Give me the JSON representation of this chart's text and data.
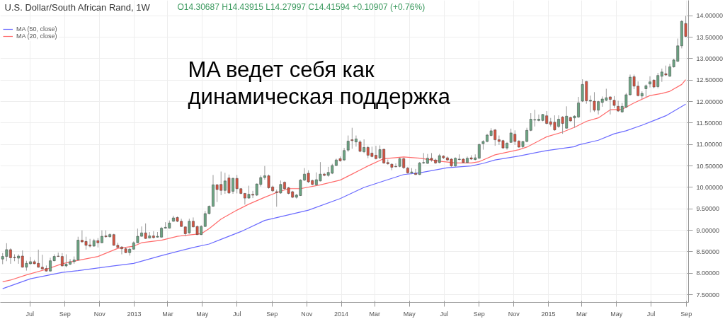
{
  "chart_data": {
    "type": "candlestick",
    "title": "U.S. Dollar/South African Rand, 1W",
    "subtitle": "O14.30687 H14.43915 L14.27997 C14.41594 +0.10907 (+0.76%)",
    "annotations": [
      "MA ведет себя как\nдинамическая поддержка"
    ],
    "colors": [
      "#6ba583",
      "#6ba583",
      "#d75442",
      "#d75442",
      "#6ba583",
      "#d75442",
      "#6ba583",
      "#6ba583",
      "#d75442",
      "#d75442",
      "#d75442",
      "#d75442",
      "#6ba583",
      "#6ba583",
      "#d75442",
      "#d75442",
      "#6ba583",
      "#6ba583",
      "#6ba583",
      "#6ba583",
      "#d75442",
      "#d75442",
      "#d75442",
      "#6ba583",
      "#d75442",
      "#6ba583",
      "#d75442",
      "#6ba583",
      "#d75442",
      "#d75442",
      "#d75442",
      "#d75442",
      "#6ba583",
      "#6ba583",
      "#6ba583",
      "#6ba583",
      "#d75442",
      "#6ba583",
      "#d75442",
      "#6ba583",
      "#6ba583",
      "#6ba583",
      "#6ba583",
      "#6ba583",
      "#d75442",
      "#d75442",
      "#d75442",
      "#6ba583",
      "#d75442",
      "#d75442",
      "#6ba583",
      "#6ba583",
      "#6ba583",
      "#6ba583",
      "#d75442",
      "#d75442",
      "#6ba583",
      "#d75442",
      "#6ba583",
      "#d75442",
      "#d75442",
      "#d75442",
      "#6ba583",
      "#d75442",
      "#6ba583",
      "#6ba583",
      "#6ba583",
      "#d75442",
      "#d75442",
      "#d75442",
      "#6ba583",
      "#d75442",
      "#d75442",
      "#d75442",
      "#6ba583",
      "#6ba583",
      "#6ba583",
      "#d75442",
      "#d75442",
      "#6ba583",
      "#6ba583",
      "#d75442",
      "#6ba583",
      "#6ba583",
      "#6ba583",
      "#d75442",
      "#6ba583",
      "#6ba583",
      "#d75442",
      "#6ba583",
      "#d75442",
      "#6ba583",
      "#d75442",
      "#d75442",
      "#d75442",
      "#6ba583",
      "#d75442",
      "#d75442",
      "#d75442",
      "#d75442",
      "#6ba583",
      "#d75442",
      "#d75442",
      "#6ba583",
      "#d75442",
      "#6ba583",
      "#6ba583",
      "#6ba583",
      "#d75442",
      "#d75442",
      "#6ba583",
      "#d75442",
      "#d75442",
      "#d75442",
      "#6ba583",
      "#6ba583",
      "#d75442",
      "#6ba583",
      "#d75442",
      "#6ba583",
      "#6ba583",
      "#6ba583",
      "#6ba583",
      "#6ba583",
      "#d75442",
      "#d75442",
      "#d75442",
      "#6ba583",
      "#6ba583",
      "#d75442",
      "#d75442",
      "#6ba583",
      "#6ba583",
      "#6ba583",
      "#6ba583",
      "#6ba583",
      "#6ba583",
      "#d75442",
      "#d75442",
      "#d75442",
      "#6ba583",
      "#d75442",
      "#6ba583",
      "#d75442",
      "#6ba583",
      "#6ba583",
      "#6ba583",
      "#d75442",
      "#6ba583",
      "#d75442",
      "#6ba583",
      "#6ba583",
      "#6ba583",
      "#d75442",
      "#d75442",
      "#d75442",
      "#6ba583",
      "#6ba583",
      "#6ba583",
      "#d75442",
      "#d75442",
      "#6ba583",
      "#6ba583",
      "#6ba583",
      "#d75442",
      "#6ba583",
      "#6ba583",
      "#d75442",
      "#6ba583",
      "#6ba583",
      "#6ba583",
      "#6ba583",
      "#d75442"
    ],
    "x": [
      "2012-05-14",
      "2012-05-21",
      "2012-05-28",
      "2012-06-04",
      "2012-06-11",
      "2012-06-18",
      "2012-06-25",
      "2012-07-02",
      "2012-07-09",
      "2012-07-16",
      "2012-07-23",
      "2012-07-30",
      "2012-08-06",
      "2012-08-13",
      "2012-08-20",
      "2012-08-27",
      "2012-09-03",
      "2012-09-10",
      "2012-09-17",
      "2012-09-24",
      "2012-10-01",
      "2012-10-08",
      "2012-10-15",
      "2012-10-22",
      "2012-10-29",
      "2012-11-05",
      "2012-11-12",
      "2012-11-19",
      "2012-11-26",
      "2012-12-03",
      "2012-12-10",
      "2012-12-17",
      "2012-12-24",
      "2012-12-31",
      "2013-01-07",
      "2013-01-14",
      "2013-01-21",
      "2013-01-28",
      "2013-02-04",
      "2013-02-11",
      "2013-02-18",
      "2013-02-25",
      "2013-03-04",
      "2013-03-11",
      "2013-03-18",
      "2013-03-25",
      "2013-04-01",
      "2013-04-08",
      "2013-04-15",
      "2013-04-22",
      "2013-04-29",
      "2013-05-06",
      "2013-05-13",
      "2013-05-20",
      "2013-05-27",
      "2013-06-03",
      "2013-06-10",
      "2013-06-17",
      "2013-06-24",
      "2013-07-01",
      "2013-07-08",
      "2013-07-15",
      "2013-07-22",
      "2013-07-29",
      "2013-08-05",
      "2013-08-12",
      "2013-08-19",
      "2013-08-26",
      "2013-09-02",
      "2013-09-09",
      "2013-09-16",
      "2013-09-23",
      "2013-09-30",
      "2013-10-07",
      "2013-10-14",
      "2013-10-21",
      "2013-10-28",
      "2013-11-04",
      "2013-11-11",
      "2013-11-18",
      "2013-11-25",
      "2013-12-02",
      "2013-12-09",
      "2013-12-16",
      "2013-12-23",
      "2013-12-30",
      "2014-01-06",
      "2014-01-13",
      "2014-01-20",
      "2014-01-27",
      "2014-02-03",
      "2014-02-10",
      "2014-02-17",
      "2014-02-24",
      "2014-03-03",
      "2014-03-10",
      "2014-03-17",
      "2014-03-24",
      "2014-03-31",
      "2014-04-07",
      "2014-04-14",
      "2014-04-21",
      "2014-04-28",
      "2014-05-05",
      "2014-05-12",
      "2014-05-19",
      "2014-05-26",
      "2014-06-02",
      "2014-06-09",
      "2014-06-16",
      "2014-06-23",
      "2014-06-30",
      "2014-07-07",
      "2014-07-14",
      "2014-07-21",
      "2014-07-28",
      "2014-08-04",
      "2014-08-11",
      "2014-08-18",
      "2014-08-25",
      "2014-09-01",
      "2014-09-08",
      "2014-09-15",
      "2014-09-22",
      "2014-09-29",
      "2014-10-06",
      "2014-10-13",
      "2014-10-20",
      "2014-10-27",
      "2014-11-03",
      "2014-11-10",
      "2014-11-17",
      "2014-11-24",
      "2014-12-01",
      "2014-12-08",
      "2014-12-15",
      "2014-12-22",
      "2014-12-29",
      "2015-01-05",
      "2015-01-12",
      "2015-01-19",
      "2015-01-26",
      "2015-02-02",
      "2015-02-09",
      "2015-02-16",
      "2015-02-23",
      "2015-03-02",
      "2015-03-09",
      "2015-03-16",
      "2015-03-23",
      "2015-03-30",
      "2015-04-06",
      "2015-04-13",
      "2015-04-20",
      "2015-04-27",
      "2015-05-04",
      "2015-05-11",
      "2015-05-18",
      "2015-05-25",
      "2015-06-01",
      "2015-06-08",
      "2015-06-15",
      "2015-06-22",
      "2015-06-29",
      "2015-07-06",
      "2015-07-13",
      "2015-07-20",
      "2015-07-27",
      "2015-08-03",
      "2015-08-10",
      "2015-08-17",
      "2015-08-24",
      "2015-08-31"
    ],
    "ohlc": [
      [
        8.33,
        8.47,
        8.21,
        8.39
      ],
      [
        8.39,
        8.7,
        8.28,
        8.55
      ],
      [
        8.55,
        8.58,
        8.22,
        8.36
      ],
      [
        8.37,
        8.44,
        8.28,
        8.36
      ],
      [
        8.35,
        8.44,
        8.22,
        8.4
      ],
      [
        8.4,
        8.53,
        8.13,
        8.14
      ],
      [
        8.14,
        8.29,
        8.06,
        8.23
      ],
      [
        8.22,
        8.38,
        8.2,
        8.27
      ],
      [
        8.27,
        8.31,
        8.21,
        8.22
      ],
      [
        8.23,
        8.55,
        8.13,
        8.14
      ],
      [
        8.14,
        8.43,
        8.09,
        8.1
      ],
      [
        8.11,
        8.18,
        8.04,
        8.05
      ],
      [
        8.05,
        8.36,
        8.04,
        8.29
      ],
      [
        8.29,
        8.44,
        8.28,
        8.39
      ],
      [
        8.4,
        8.48,
        8.38,
        8.39
      ],
      [
        8.39,
        8.47,
        8.16,
        8.17
      ],
      [
        8.17,
        8.44,
        8.14,
        8.21
      ],
      [
        8.21,
        8.33,
        8.19,
        8.27
      ],
      [
        8.27,
        8.39,
        8.22,
        8.31
      ],
      [
        8.31,
        8.85,
        8.29,
        8.77
      ],
      [
        8.77,
        9.0,
        8.71,
        8.73
      ],
      [
        8.74,
        8.85,
        8.55,
        8.65
      ],
      [
        8.66,
        8.8,
        8.6,
        8.63
      ],
      [
        8.63,
        8.8,
        8.62,
        8.76
      ],
      [
        8.76,
        8.82,
        8.6,
        8.71
      ],
      [
        8.71,
        9.0,
        8.7,
        8.86
      ],
      [
        8.87,
        9.0,
        8.83,
        8.85
      ],
      [
        8.85,
        8.93,
        8.83,
        8.9
      ],
      [
        8.9,
        8.92,
        8.64,
        8.65
      ],
      [
        8.65,
        8.71,
        8.59,
        8.6
      ],
      [
        8.61,
        8.63,
        8.44,
        8.57
      ],
      [
        8.57,
        8.6,
        8.47,
        8.48
      ],
      [
        8.48,
        8.59,
        8.41,
        8.56
      ],
      [
        8.56,
        8.74,
        8.55,
        8.71
      ],
      [
        8.71,
        9.04,
        8.7,
        8.86
      ],
      [
        8.86,
        9.09,
        8.85,
        8.94
      ],
      [
        8.94,
        9.16,
        8.8,
        8.81
      ],
      [
        8.82,
        8.96,
        8.81,
        8.87
      ],
      [
        8.87,
        8.98,
        8.81,
        8.83
      ],
      [
        8.84,
        8.96,
        8.83,
        8.86
      ],
      [
        8.84,
        9.08,
        8.83,
        9.05
      ],
      [
        9.05,
        9.19,
        9.04,
        9.07
      ],
      [
        9.05,
        9.23,
        9.04,
        9.17
      ],
      [
        9.21,
        9.34,
        9.2,
        9.29
      ],
      [
        9.3,
        9.32,
        9.19,
        9.21
      ],
      [
        9.21,
        9.27,
        9.08,
        9.09
      ],
      [
        9.08,
        9.09,
        8.86,
        8.92
      ],
      [
        8.94,
        9.27,
        8.92,
        9.21
      ],
      [
        9.21,
        9.3,
        9.07,
        9.08
      ],
      [
        9.09,
        9.11,
        8.89,
        8.9
      ],
      [
        8.9,
        9.12,
        8.89,
        9.09
      ],
      [
        9.09,
        9.45,
        9.08,
        9.39
      ],
      [
        9.39,
        9.58,
        9.37,
        9.56
      ],
      [
        9.56,
        10.29,
        9.55,
        10.06
      ],
      [
        10.06,
        10.08,
        9.66,
        9.95
      ],
      [
        10.07,
        10.37,
        9.82,
        9.93
      ],
      [
        9.93,
        10.34,
        9.85,
        10.15
      ],
      [
        10.22,
        10.3,
        9.85,
        9.87
      ],
      [
        9.91,
        10.23,
        9.85,
        10.21
      ],
      [
        10.21,
        10.29,
        9.86,
        9.97
      ],
      [
        9.97,
        9.98,
        9.84,
        9.86
      ],
      [
        9.86,
        9.87,
        9.6,
        9.75
      ],
      [
        9.75,
        10.04,
        9.74,
        9.84
      ],
      [
        9.84,
        9.92,
        9.75,
        9.82
      ],
      [
        9.82,
        10.09,
        9.8,
        10.08
      ],
      [
        10.07,
        10.28,
        10.02,
        10.23
      ],
      [
        10.23,
        10.5,
        10.18,
        10.27
      ],
      [
        10.27,
        10.3,
        9.97,
        9.99
      ],
      [
        10.01,
        10.04,
        9.9,
        9.92
      ],
      [
        9.9,
        9.95,
        9.55,
        9.88
      ],
      [
        9.87,
        10.16,
        9.85,
        10.07
      ],
      [
        10.12,
        10.14,
        9.95,
        9.97
      ],
      [
        9.99,
        10.01,
        9.84,
        9.86
      ],
      [
        9.9,
        9.92,
        9.75,
        9.77
      ],
      [
        9.77,
        9.85,
        9.74,
        9.82
      ],
      [
        9.81,
        10.19,
        9.8,
        10.17
      ],
      [
        10.17,
        10.45,
        10.15,
        10.31
      ],
      [
        10.33,
        10.4,
        10.1,
        10.13
      ],
      [
        10.16,
        10.18,
        10.05,
        10.07
      ],
      [
        10.06,
        10.35,
        10.04,
        10.18
      ],
      [
        10.15,
        10.59,
        10.14,
        10.31
      ],
      [
        10.31,
        10.34,
        10.26,
        10.28
      ],
      [
        10.28,
        10.48,
        10.25,
        10.35
      ],
      [
        10.33,
        10.55,
        10.31,
        10.51
      ],
      [
        10.51,
        10.67,
        10.5,
        10.64
      ],
      [
        10.67,
        10.72,
        10.6,
        10.62
      ],
      [
        10.64,
        10.92,
        10.62,
        10.86
      ],
      [
        10.87,
        11.21,
        10.83,
        11.08
      ],
      [
        11.11,
        11.39,
        10.9,
        11.09
      ],
      [
        11.06,
        11.21,
        10.95,
        11.13
      ],
      [
        11.06,
        11.1,
        10.82,
        10.84
      ],
      [
        10.83,
        11.12,
        10.8,
        10.93
      ],
      [
        10.93,
        10.97,
        10.68,
        10.75
      ],
      [
        10.8,
        10.95,
        10.7,
        10.72
      ],
      [
        10.75,
        10.97,
        10.65,
        10.67
      ],
      [
        10.69,
        10.98,
        10.66,
        10.88
      ],
      [
        10.89,
        10.9,
        10.55,
        10.57
      ],
      [
        10.58,
        10.65,
        10.53,
        10.55
      ],
      [
        10.54,
        10.56,
        10.4,
        10.47
      ],
      [
        10.49,
        10.56,
        10.47,
        10.48
      ],
      [
        10.49,
        10.69,
        10.47,
        10.67
      ],
      [
        10.67,
        10.69,
        10.43,
        10.46
      ],
      [
        10.45,
        10.48,
        10.32,
        10.34
      ],
      [
        10.34,
        10.45,
        10.31,
        10.36
      ],
      [
        10.33,
        10.43,
        10.29,
        10.3
      ],
      [
        10.3,
        10.59,
        10.29,
        10.57
      ],
      [
        10.57,
        10.8,
        10.55,
        10.58
      ],
      [
        10.56,
        10.78,
        10.55,
        10.68
      ],
      [
        10.68,
        10.8,
        10.6,
        10.64
      ],
      [
        10.64,
        10.67,
        10.55,
        10.57
      ],
      [
        10.58,
        10.78,
        10.56,
        10.74
      ],
      [
        10.73,
        10.75,
        10.66,
        10.69
      ],
      [
        10.69,
        10.72,
        10.62,
        10.64
      ],
      [
        10.66,
        10.68,
        10.48,
        10.5
      ],
      [
        10.5,
        10.7,
        10.48,
        10.68
      ],
      [
        10.65,
        10.77,
        10.63,
        10.66
      ],
      [
        10.66,
        10.68,
        10.56,
        10.58
      ],
      [
        10.58,
        10.72,
        10.56,
        10.68
      ],
      [
        10.69,
        10.75,
        10.64,
        10.66
      ],
      [
        10.65,
        10.77,
        10.63,
        10.69
      ],
      [
        10.68,
        11.02,
        10.67,
        11.0
      ],
      [
        11.02,
        11.1,
        10.88,
        11.07
      ],
      [
        11.07,
        11.25,
        11.05,
        11.22
      ],
      [
        11.21,
        11.38,
        11.19,
        11.32
      ],
      [
        11.34,
        11.36,
        10.97,
        11.11
      ],
      [
        11.11,
        11.21,
        10.99,
        11.07
      ],
      [
        11.09,
        11.11,
        10.9,
        10.92
      ],
      [
        10.92,
        11.06,
        10.88,
        11.03
      ],
      [
        11.05,
        11.37,
        11.04,
        11.27
      ],
      [
        11.24,
        11.33,
        10.99,
        11.07
      ],
      [
        11.08,
        11.1,
        10.92,
        10.94
      ],
      [
        10.95,
        11.08,
        10.92,
        11.07
      ],
      [
        11.07,
        11.39,
        11.05,
        11.33
      ],
      [
        11.33,
        11.73,
        11.31,
        11.59
      ],
      [
        11.57,
        11.81,
        11.42,
        11.58
      ],
      [
        11.56,
        11.7,
        11.54,
        11.59
      ],
      [
        11.56,
        11.71,
        11.54,
        11.7
      ],
      [
        11.67,
        11.78,
        11.47,
        11.49
      ],
      [
        11.53,
        11.62,
        11.42,
        11.47
      ],
      [
        11.52,
        11.68,
        11.32,
        11.34
      ],
      [
        11.42,
        11.68,
        11.39,
        11.59
      ],
      [
        11.64,
        11.66,
        11.25,
        11.49
      ],
      [
        11.38,
        11.89,
        11.37,
        11.66
      ],
      [
        11.63,
        11.65,
        11.53,
        11.55
      ],
      [
        11.62,
        11.68,
        11.39,
        11.66
      ],
      [
        11.64,
        12.11,
        11.62,
        11.97
      ],
      [
        12.01,
        12.52,
        11.99,
        12.4
      ],
      [
        12.47,
        12.48,
        11.95,
        12.02
      ],
      [
        12.01,
        12.14,
        11.75,
        12.03
      ],
      [
        12.01,
        12.22,
        11.76,
        11.8
      ],
      [
        11.8,
        12.02,
        11.7,
        12.0
      ],
      [
        11.98,
        12.12,
        11.88,
        12.06
      ],
      [
        12.03,
        12.3,
        12.01,
        12.09
      ],
      [
        12.11,
        12.12,
        11.7,
        12.05
      ],
      [
        12.03,
        12.13,
        11.85,
        11.91
      ],
      [
        11.89,
        12.02,
        11.76,
        11.78
      ],
      [
        11.76,
        11.97,
        11.74,
        11.89
      ],
      [
        11.87,
        12.2,
        11.85,
        12.16
      ],
      [
        12.16,
        12.63,
        12.14,
        12.57
      ],
      [
        12.58,
        12.63,
        12.29,
        12.36
      ],
      [
        12.36,
        12.47,
        12.12,
        12.14
      ],
      [
        12.13,
        12.24,
        12.06,
        12.19
      ],
      [
        12.3,
        12.4,
        12.11,
        12.37
      ],
      [
        12.41,
        12.59,
        12.33,
        12.46
      ],
      [
        12.5,
        12.52,
        12.31,
        12.34
      ],
      [
        12.35,
        12.67,
        12.31,
        12.61
      ],
      [
        12.59,
        12.77,
        12.46,
        12.69
      ],
      [
        12.65,
        12.84,
        12.6,
        12.62
      ],
      [
        12.59,
        12.88,
        12.58,
        12.81
      ],
      [
        12.81,
        13.0,
        12.79,
        12.97
      ],
      [
        12.94,
        13.47,
        12.93,
        13.3
      ],
      [
        13.3,
        13.9,
        13.24,
        13.87
      ],
      [
        13.82,
        14.0,
        13.5,
        13.52
      ]
    ],
    "series": [
      {
        "name": "MA (50, close)",
        "type": "line",
        "color": "#6b6bff",
        "x": [
          "2012-05-14",
          "2012-07-02",
          "2012-08-27",
          "2012-09-24",
          "2012-11-26",
          "2012-12-31",
          "2013-02-18",
          "2013-04-15",
          "2013-05-13",
          "2013-06-03",
          "2013-07-08",
          "2013-08-19",
          "2013-11-04",
          "2013-12-30",
          "2014-02-10",
          "2014-03-24",
          "2014-04-21",
          "2014-05-19",
          "2014-07-07",
          "2014-08-18",
          "2014-09-08",
          "2014-09-29",
          "2014-11-10",
          "2014-12-29",
          "2015-02-16",
          "2015-02-23",
          "2015-03-30",
          "2015-04-27",
          "2015-05-18",
          "2015-06-15",
          "2015-07-06",
          "2015-07-27",
          "2015-08-31"
        ],
        "values": [
          7.64,
          7.87,
          8.02,
          8.06,
          8.17,
          8.23,
          8.41,
          8.6,
          8.68,
          8.79,
          8.97,
          9.23,
          9.47,
          9.74,
          10.0,
          10.18,
          10.3,
          10.34,
          10.46,
          10.5,
          10.56,
          10.64,
          10.73,
          10.86,
          10.95,
          10.99,
          11.1,
          11.25,
          11.32,
          11.45,
          11.56,
          11.67,
          11.94
        ]
      },
      {
        "name": "MA (20, close)",
        "type": "line",
        "color": "#ff6b6b",
        "x": [
          "2012-05-14",
          "2012-05-28",
          "2012-06-25",
          "2012-07-30",
          "2012-08-27",
          "2012-09-24",
          "2012-10-29",
          "2012-12-03",
          "2012-12-31",
          "2013-01-14",
          "2013-02-18",
          "2013-03-18",
          "2013-04-29",
          "2013-05-13",
          "2013-06-03",
          "2013-07-01",
          "2013-07-22",
          "2013-08-19",
          "2013-09-09",
          "2013-09-30",
          "2013-10-21",
          "2013-11-25",
          "2013-12-30",
          "2014-01-20",
          "2014-02-17",
          "2014-03-17",
          "2014-04-21",
          "2014-05-19",
          "2014-06-23",
          "2014-07-21",
          "2014-08-18",
          "2014-09-01",
          "2014-09-29",
          "2014-11-10",
          "2014-11-24",
          "2014-12-29",
          "2015-01-26",
          "2015-02-16",
          "2015-03-09",
          "2015-03-30",
          "2015-04-20",
          "2015-05-11",
          "2015-06-01",
          "2015-06-29",
          "2015-07-20",
          "2015-08-03",
          "2015-08-24",
          "2015-08-31"
        ],
        "values": [
          7.8,
          7.84,
          7.96,
          8.09,
          8.22,
          8.3,
          8.39,
          8.58,
          8.63,
          8.71,
          8.77,
          8.86,
          8.92,
          9.04,
          9.26,
          9.47,
          9.61,
          9.77,
          9.88,
          9.97,
          9.97,
          10.06,
          10.17,
          10.31,
          10.5,
          10.67,
          10.71,
          10.68,
          10.61,
          10.57,
          10.57,
          10.6,
          10.76,
          10.88,
          10.94,
          11.18,
          11.29,
          11.4,
          11.54,
          11.62,
          11.81,
          11.82,
          11.97,
          12.14,
          12.19,
          12.24,
          12.4,
          12.51
        ]
      }
    ],
    "xlim": [
      "2012-05-10",
      "2015-09-05"
    ],
    "xticks": [
      {
        "value": "2012-07-01",
        "label": "Jul"
      },
      {
        "value": "2012-09-01",
        "label": "Sep"
      },
      {
        "value": "2012-11-01",
        "label": "Nov"
      },
      {
        "value": "2013-01-01",
        "label": "2013"
      },
      {
        "value": "2013-03-01",
        "label": "Mar"
      },
      {
        "value": "2013-05-01",
        "label": "May"
      },
      {
        "value": "2013-07-01",
        "label": "Jul"
      },
      {
        "value": "2013-09-01",
        "label": "Sep"
      },
      {
        "value": "2013-11-01",
        "label": "Nov"
      },
      {
        "value": "2014-01-01",
        "label": "2014"
      },
      {
        "value": "2014-03-01",
        "label": "Mar"
      },
      {
        "value": "2014-05-01",
        "label": "May"
      },
      {
        "value": "2014-07-01",
        "label": "Jul"
      },
      {
        "value": "2014-09-01",
        "label": "Sep"
      },
      {
        "value": "2014-11-01",
        "label": "Nov"
      },
      {
        "value": "2015-01-01",
        "label": "2015"
      },
      {
        "value": "2015-03-01",
        "label": "Mar"
      },
      {
        "value": "2015-05-01",
        "label": "May"
      },
      {
        "value": "2015-07-01",
        "label": "Jul"
      },
      {
        "value": "2015-09-01",
        "label": "Sep"
      }
    ],
    "ylim": [
      7.32,
      14.36
    ],
    "yticks": [
      {
        "value": 7.5,
        "label": "7.50000"
      },
      {
        "value": 8,
        "label": "8.00000"
      },
      {
        "value": 8.5,
        "label": "8.50000"
      },
      {
        "value": 9,
        "label": "9.00000"
      },
      {
        "value": 9.5,
        "label": "9.50000"
      },
      {
        "value": 10,
        "label": "10.00000"
      },
      {
        "value": 10.5,
        "label": "10.50000"
      },
      {
        "value": 11,
        "label": "11.00000"
      },
      {
        "value": 11.5,
        "label": "11.50000"
      },
      {
        "value": 12,
        "label": "12.00000"
      },
      {
        "value": 12.5,
        "label": "12.50000"
      },
      {
        "value": 13,
        "label": "13.00000"
      },
      {
        "value": 13.5,
        "label": "13.50000"
      },
      {
        "value": 14,
        "label": "14.00000"
      }
    ],
    "grid": true,
    "legend": "top left",
    "line_style": "solid"
  }
}
